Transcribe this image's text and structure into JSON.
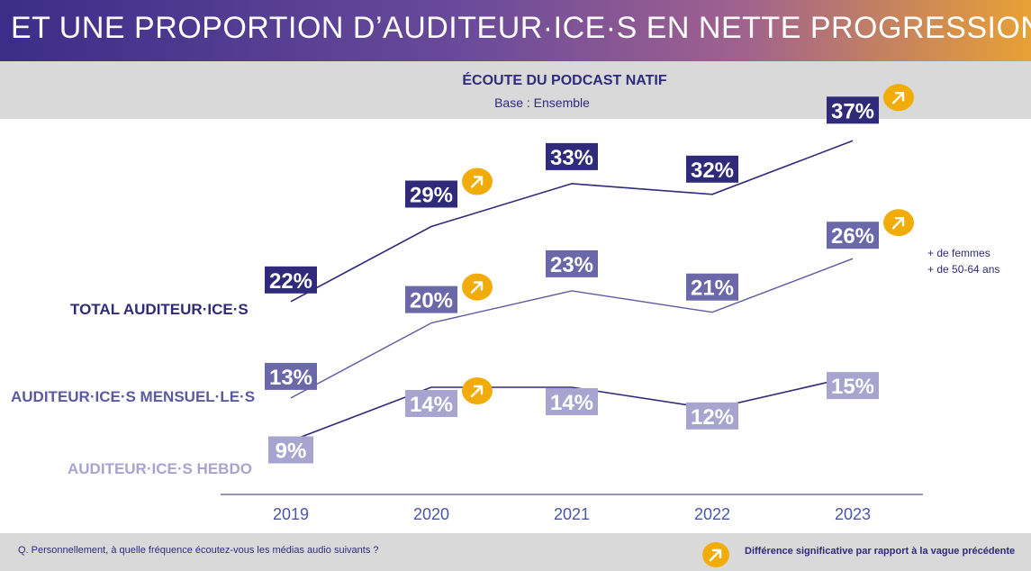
{
  "header": {
    "title": "ET UNE PROPORTION D’AUDITEUR·ICE·S EN NETTE PROGRESSION"
  },
  "chart_data": {
    "type": "line",
    "title": "ÉCOUTE DU PODCAST NATIF",
    "subtitle": "Base : Ensemble",
    "x": [
      "2019",
      "2020",
      "2021",
      "2022",
      "2023"
    ],
    "unit": "%",
    "series": [
      {
        "name": "TOTAL AUDITEUR·ICE·S",
        "values": [
          22,
          29,
          33,
          32,
          37
        ],
        "color": "#2f2a7a",
        "label_bg": "#2f2a7a",
        "label_color": "#ffffff",
        "significant": [
          false,
          true,
          false,
          false,
          true
        ]
      },
      {
        "name": "AUDITEUR·ICE·S MENSUEL·LE·S",
        "values": [
          13,
          20,
          23,
          21,
          26
        ],
        "color": "#5b5aa0",
        "label_bg": "#6b68aa",
        "label_color": "#ffffff",
        "significant": [
          false,
          true,
          false,
          false,
          true
        ]
      },
      {
        "name": "AUDITEUR·ICE·S HEBDO",
        "values": [
          9,
          14,
          14,
          12,
          15
        ],
        "color": "#2f2a7a",
        "label_bg": "#a7a5cf",
        "label_color": "#ffffff",
        "significant": [
          false,
          true,
          false,
          false,
          false
        ]
      }
    ],
    "annotation": [
      "+ de femmes",
      "+ de 50-64 ans"
    ],
    "grid": false,
    "legend": "left labels",
    "colors": {
      "significance_badge": "#f2ac0a"
    }
  },
  "footer": {
    "question": "Q. Personnellement, à quelle fréquence écoutez-vous les médias audio suivants ?",
    "legend": "Différence significative par rapport à la vague précédente"
  },
  "icons": {
    "significance": "arrow-up-right-icon"
  }
}
